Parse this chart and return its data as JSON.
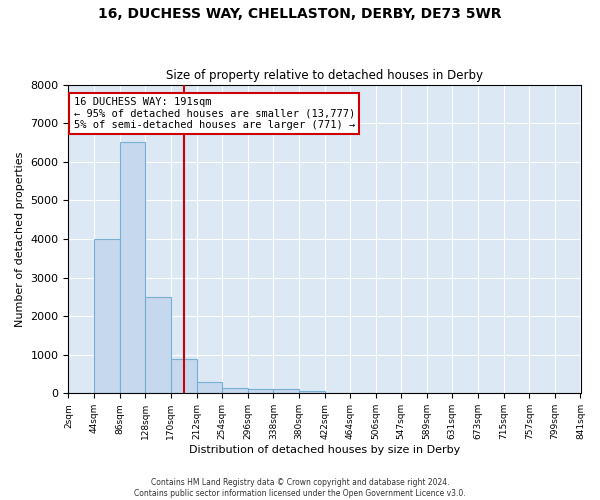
{
  "title": "16, DUCHESS WAY, CHELLASTON, DERBY, DE73 5WR",
  "subtitle": "Size of property relative to detached houses in Derby",
  "xlabel": "Distribution of detached houses by size in Derby",
  "ylabel": "Number of detached properties",
  "bar_color": "#c5d8ed",
  "bar_edge_color": "#7aafd4",
  "background_color": "#dce9f5",
  "grid_color": "#ffffff",
  "bins": [
    2,
    44,
    86,
    128,
    170,
    212,
    254,
    296,
    338,
    380,
    422,
    464,
    506,
    547,
    589,
    631,
    673,
    715,
    757,
    799,
    841
  ],
  "counts": [
    0,
    4000,
    6500,
    2500,
    900,
    300,
    150,
    100,
    100,
    50,
    0,
    0,
    0,
    0,
    0,
    0,
    0,
    0,
    0,
    0
  ],
  "property_size": 191,
  "red_line_color": "#cc0000",
  "annotation_line1": "16 DUCHESS WAY: 191sqm",
  "annotation_line2": "← 95% of detached houses are smaller (13,777)",
  "annotation_line3": "5% of semi-detached houses are larger (771) →",
  "annotation_box_color": "#cc0000",
  "ylim": [
    0,
    8000
  ],
  "yticks": [
    0,
    1000,
    2000,
    3000,
    4000,
    5000,
    6000,
    7000,
    8000
  ],
  "footer1": "Contains HM Land Registry data © Crown copyright and database right 2024.",
  "footer2": "Contains public sector information licensed under the Open Government Licence v3.0.",
  "tick_labels": [
    "2sqm",
    "44sqm",
    "86sqm",
    "128sqm",
    "170sqm",
    "212sqm",
    "254sqm",
    "296sqm",
    "338sqm",
    "380sqm",
    "422sqm",
    "464sqm",
    "506sqm",
    "547sqm",
    "589sqm",
    "631sqm",
    "673sqm",
    "715sqm",
    "757sqm",
    "799sqm",
    "841sqm"
  ]
}
